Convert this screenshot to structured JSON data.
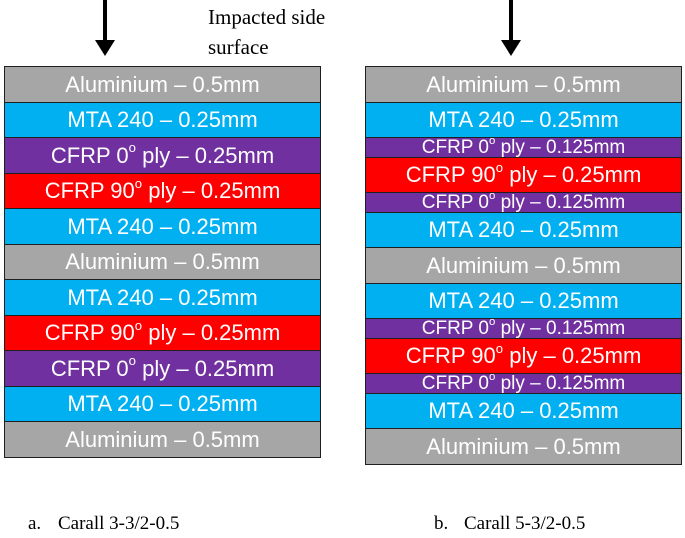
{
  "impact_label": "Impacted side surface",
  "panels": [
    {
      "letter": "a.",
      "name": "Carall 3-3/2-0.5",
      "layers": [
        {
          "type": "al",
          "text": "Aluminium – 0.5mm"
        },
        {
          "type": "mta",
          "text": "MTA 240 – 0.25mm"
        },
        {
          "type": "cf0",
          "pre": "CFRP 0",
          "sup": "o",
          "post": " ply – 0.25mm"
        },
        {
          "type": "cf90",
          "pre": "CFRP 90",
          "sup": "o",
          "post": " ply – 0.25mm"
        },
        {
          "type": "mta",
          "text": "MTA 240 – 0.25mm"
        },
        {
          "type": "al",
          "text": "Aluminium – 0.5mm"
        },
        {
          "type": "mta",
          "text": "MTA 240 – 0.25mm"
        },
        {
          "type": "cf90",
          "pre": "CFRP 90",
          "sup": "o",
          "post": " ply – 0.25mm"
        },
        {
          "type": "cf0",
          "pre": "CFRP 0",
          "sup": "o",
          "post": " ply – 0.25mm"
        },
        {
          "type": "mta",
          "text": "MTA 240 – 0.25mm"
        },
        {
          "type": "al",
          "text": "Aluminium – 0.5mm"
        }
      ]
    },
    {
      "letter": "b.",
      "name": "Carall 5-3/2-0.5",
      "layers": [
        {
          "type": "al",
          "text": "Aluminium – 0.5mm"
        },
        {
          "type": "mta",
          "text": "MTA 240 – 0.25mm"
        },
        {
          "type": "cf0",
          "pre": "CFRP 0",
          "sup": "o",
          "post": " ply – 0.125mm"
        },
        {
          "type": "cf90",
          "pre": "CFRP 90",
          "sup": "o",
          "post": " ply – 0.25mm"
        },
        {
          "type": "cf0",
          "pre": "CFRP 0",
          "sup": "o",
          "post": " ply – 0.125mm"
        },
        {
          "type": "mta",
          "text": "MTA 240 – 0.25mm"
        },
        {
          "type": "al",
          "text": "Aluminium – 0.5mm"
        },
        {
          "type": "mta",
          "text": "MTA 240 – 0.25mm"
        },
        {
          "type": "cf0",
          "pre": "CFRP 0",
          "sup": "o",
          "post": " ply – 0.125mm"
        },
        {
          "type": "cf90",
          "pre": "CFRP 90",
          "sup": "o",
          "post": " ply – 0.25mm"
        },
        {
          "type": "cf0",
          "pre": "CFRP 0",
          "sup": "o",
          "post": " ply – 0.125mm"
        },
        {
          "type": "mta",
          "text": "MTA 240 – 0.25mm"
        },
        {
          "type": "al",
          "text": "Aluminium – 0.5mm"
        }
      ]
    }
  ],
  "colors": {
    "al": "#a6a6a6",
    "mta": "#00b0f0",
    "cf0": "#7030a0",
    "cf90": "#ff0000"
  }
}
